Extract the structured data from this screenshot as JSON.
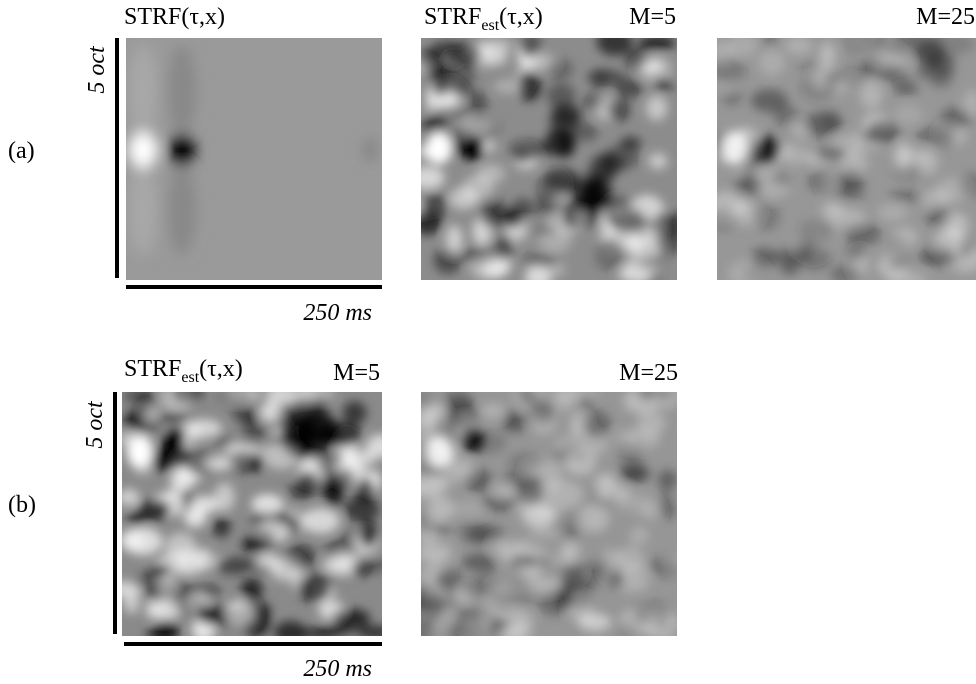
{
  "figure": {
    "rows": [
      {
        "label": "(a)",
        "y_axis": "5 oct",
        "x_axis": "250 ms",
        "panels": [
          {
            "title": {
              "main": "STRF",
              "rest": "(τ,x)"
            }
          },
          {
            "title": {
              "main": "STRF",
              "sub": "est",
              "rest": "(τ,x)"
            },
            "m": "M=5"
          },
          {
            "m": "M=25"
          }
        ]
      },
      {
        "label": "(b)",
        "y_axis": "5 oct",
        "x_axis": "250 ms",
        "panels": [
          {
            "title": {
              "main": "STRF",
              "sub": "est",
              "rest": "(τ,x)"
            },
            "m": "M=5"
          },
          {
            "m": "M=25"
          }
        ]
      }
    ]
  }
}
